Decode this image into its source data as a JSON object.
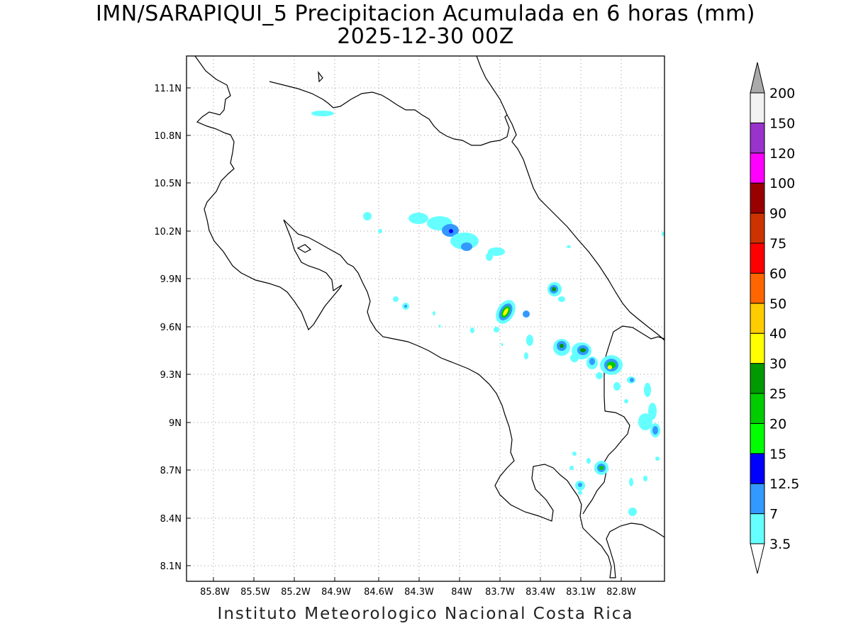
{
  "title": {
    "line1": "IMN/SARAPIQUI_5 Precipitacion Acumulada en 6 horas (mm)",
    "line2": "2025-12-30 00Z"
  },
  "footer": "Instituto Meteorologico Nacional Costa Rica",
  "map": {
    "lat_ticks": [
      "11.1N",
      "10.8N",
      "10.5N",
      "10.2N",
      "9.9N",
      "9.6N",
      "9.3N",
      "9N",
      "8.7N",
      "8.4N",
      "8.1N"
    ],
    "lon_ticks": [
      "85.8W",
      "85.5W",
      "85.2W",
      "84.9W",
      "84.6W",
      "84.3W",
      "84W",
      "83.7W",
      "83.4W",
      "83.1W",
      "82.8W"
    ],
    "grid": true
  },
  "colorbar": {
    "levels": [
      "3.5",
      "7",
      "12.5",
      "15",
      "20",
      "25",
      "30",
      "40",
      "50",
      "60",
      "75",
      "90",
      "100",
      "120",
      "150",
      "200"
    ],
    "colors": [
      "#66ffff",
      "#3399ff",
      "#0000ff",
      "#00ff00",
      "#00cc00",
      "#009900",
      "#ffff00",
      "#ffcc00",
      "#ff6600",
      "#ff0000",
      "#cc3300",
      "#990000",
      "#ff00ff",
      "#9933cc",
      "#f2f2f2",
      "#aaaaaa"
    ]
  }
}
